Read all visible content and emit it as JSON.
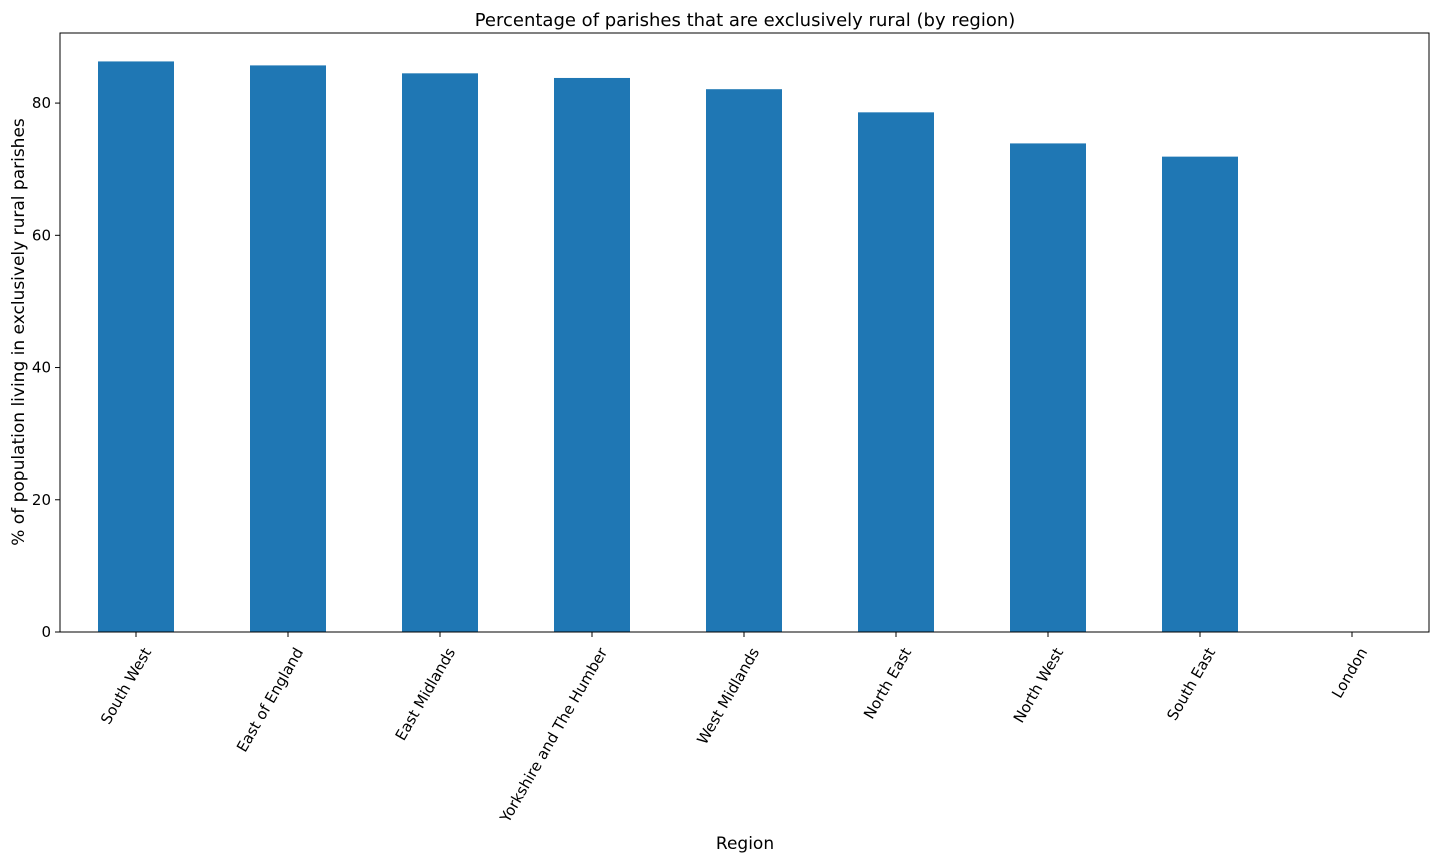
{
  "chart_data": {
    "type": "bar",
    "title": "Percentage of parishes that are exclusively rural (by region)",
    "xlabel": "Region",
    "ylabel": "% of population living in exclusively rural parishes",
    "categories": [
      "South West",
      "East of England",
      "East Midlands",
      "Yorkshire and The Humber",
      "West Midlands",
      "North East",
      "North West",
      "South East",
      "London"
    ],
    "values": [
      86.3,
      85.7,
      84.5,
      83.8,
      82.1,
      78.6,
      73.9,
      71.9,
      0
    ],
    "ylim": [
      0,
      90.6
    ],
    "yticks": [
      0,
      20,
      40,
      60,
      80
    ],
    "ytick_labels": [
      "0",
      "20",
      "40",
      "60",
      "80"
    ],
    "bar_color": "#1f77b4",
    "grid": false,
    "legend": "none",
    "xtick_rotation_deg": 60
  }
}
